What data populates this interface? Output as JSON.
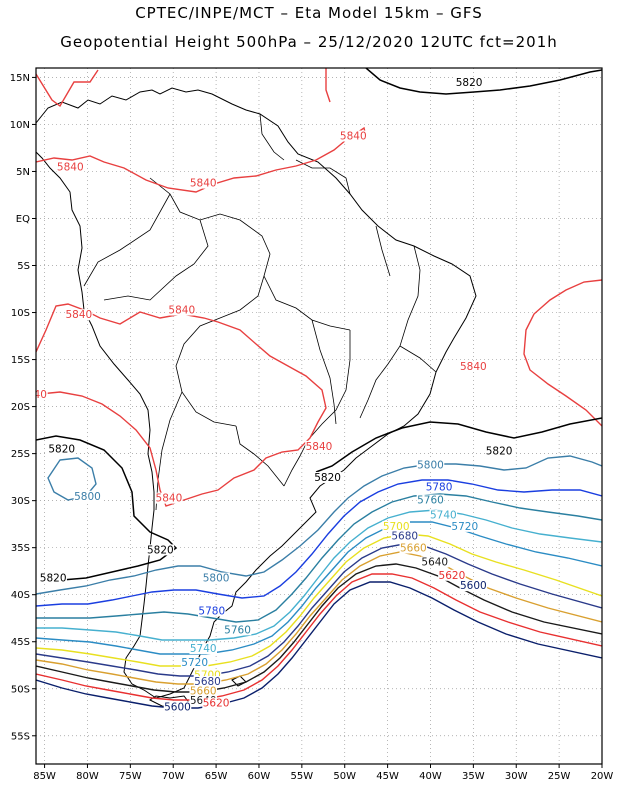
{
  "header": {
    "line1": "CPTEC/INPE/MCT –  Eta Model 15km – GFS",
    "line2": "Geopotential Height 500hPa – 25/12/2020 12UTC fct=201h"
  },
  "axes": {
    "lat_labels": [
      "15N",
      "10N",
      "5N",
      "EQ",
      "5S",
      "10S",
      "15S",
      "20S",
      "25S",
      "30S",
      "35S",
      "40S",
      "45S",
      "50S",
      "55S"
    ],
    "lon_labels": [
      "85W",
      "80W",
      "75W",
      "70W",
      "65W",
      "60W",
      "55W",
      "50W",
      "45W",
      "40W",
      "35W",
      "30W",
      "25W",
      "20W"
    ]
  },
  "chart_data": {
    "type": "contour-map",
    "variable": "Geopotential Height 500hPa",
    "lon_range": [
      -86,
      -20
    ],
    "lat_range": [
      16,
      -58
    ],
    "grid": true,
    "contour_levels": [
      5600,
      5620,
      5640,
      5660,
      5680,
      5700,
      5720,
      5740,
      5760,
      5780,
      5800,
      5820,
      5840
    ],
    "level_colors": {
      "5600": "#0a1f6b",
      "5620": "#e83030",
      "5640": "#1a1a1a",
      "5660": "#d9a030",
      "5680": "#2a3a8a",
      "5700": "#e8e020",
      "5720": "#2b8cc4",
      "5740": "#46b0cf",
      "5760": "#2a7fa0",
      "5780": "#1a3ee0",
      "5800": "#3b7ea8",
      "5820": "#000000",
      "5840": "#e84040"
    },
    "contour_labels": [
      {
        "text": "5840",
        "lon": -82,
        "lat": 5.2,
        "color": "#e84040"
      },
      {
        "text": "5840",
        "lon": -66.5,
        "lat": 3.5,
        "color": "#e84040"
      },
      {
        "text": "5840",
        "lon": -49,
        "lat": 8.5,
        "color": "#e84040"
      },
      {
        "text": "5840",
        "lon": -81,
        "lat": -10.5,
        "color": "#e84040"
      },
      {
        "text": "5840",
        "lon": -69,
        "lat": -10,
        "color": "#e84040"
      },
      {
        "text": "5840",
        "lon": -35,
        "lat": -16,
        "color": "#e84040"
      },
      {
        "text": "40",
        "lon": -85.5,
        "lat": -19,
        "color": "#e84040"
      },
      {
        "text": "5840",
        "lon": -53,
        "lat": -24.5,
        "color": "#e84040"
      },
      {
        "text": "5840",
        "lon": -70.5,
        "lat": -30,
        "color": "#e84040"
      },
      {
        "text": "5820",
        "lon": -35.5,
        "lat": 14.2,
        "color": "#000000"
      },
      {
        "text": "5820",
        "lon": -83,
        "lat": -24.8,
        "color": "#000000"
      },
      {
        "text": "5820",
        "lon": -52,
        "lat": -27.8,
        "color": "#000000"
      },
      {
        "text": "5820",
        "lon": -32,
        "lat": -25,
        "color": "#000000"
      },
      {
        "text": "5820",
        "lon": -71.5,
        "lat": -35.5,
        "color": "#000000"
      },
      {
        "text": "5820",
        "lon": -84,
        "lat": -38.5,
        "color": "#000000"
      },
      {
        "text": "5800",
        "lon": -80,
        "lat": -29.8,
        "color": "#3b7ea8"
      },
      {
        "text": "5800",
        "lon": -40,
        "lat": -26.5,
        "color": "#3b7ea8"
      },
      {
        "text": "5800",
        "lon": -65,
        "lat": -38.5,
        "color": "#3b7ea8"
      },
      {
        "text": "5780",
        "lon": -39,
        "lat": -28.8,
        "color": "#1a3ee0"
      },
      {
        "text": "5780",
        "lon": -65.5,
        "lat": -42,
        "color": "#1a3ee0"
      },
      {
        "text": "5760",
        "lon": -40,
        "lat": -30.2,
        "color": "#2a7fa0"
      },
      {
        "text": "5760",
        "lon": -62.5,
        "lat": -44,
        "color": "#2a7fa0"
      },
      {
        "text": "5740",
        "lon": -38.5,
        "lat": -31.8,
        "color": "#46b0cf"
      },
      {
        "text": "5740",
        "lon": -66.5,
        "lat": -46,
        "color": "#46b0cf"
      },
      {
        "text": "5720",
        "lon": -36,
        "lat": -33,
        "color": "#2b8cc4"
      },
      {
        "text": "5720",
        "lon": -67.5,
        "lat": -47.5,
        "color": "#2b8cc4"
      },
      {
        "text": "5700",
        "lon": -44,
        "lat": -33,
        "color": "#e8e020"
      },
      {
        "text": "5700",
        "lon": -66,
        "lat": -48.8,
        "color": "#e8e020"
      },
      {
        "text": "5680",
        "lon": -43,
        "lat": -34,
        "color": "#2a3a8a"
      },
      {
        "text": "5680",
        "lon": -66,
        "lat": -49.5,
        "color": "#2a3a8a"
      },
      {
        "text": "5660",
        "lon": -42,
        "lat": -35.3,
        "color": "#d9a030"
      },
      {
        "text": "5660",
        "lon": -66.5,
        "lat": -50.5,
        "color": "#d9a030"
      },
      {
        "text": "5640",
        "lon": -39.5,
        "lat": -36.8,
        "color": "#1a1a1a"
      },
      {
        "text": "5640",
        "lon": -66.5,
        "lat": -51.5,
        "color": "#1a1a1a"
      },
      {
        "text": "5620",
        "lon": -37.5,
        "lat": -38.2,
        "color": "#e83030"
      },
      {
        "text": "5620",
        "lon": -65,
        "lat": -51.8,
        "color": "#e83030"
      },
      {
        "text": "5600",
        "lon": -35,
        "lat": -39.3,
        "color": "#0a1f6b"
      },
      {
        "text": "5600",
        "lon": -69.5,
        "lat": -52.2,
        "color": "#0a1f6b"
      }
    ]
  }
}
